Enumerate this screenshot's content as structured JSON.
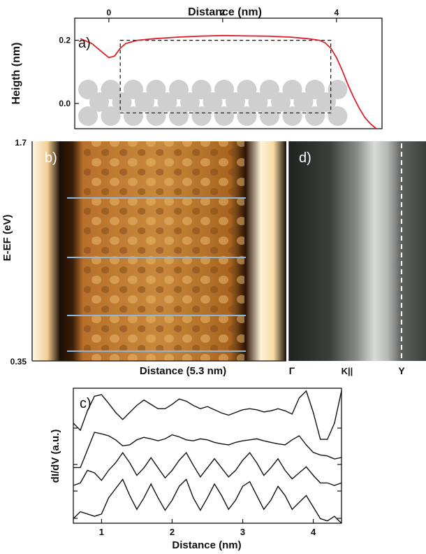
{
  "colors": {
    "profile": "#e0202a",
    "atoms": "#cfcfcf",
    "cut_lines": "#8fb6d6",
    "curves": "#111111",
    "map_dark": "#1a0e05",
    "map_mid": "#b8702a",
    "map_light": "#fff6e6",
    "arpes_dark": "#1e2320",
    "arpes_light": "#f2f2f2"
  },
  "chart_data": [
    {
      "panel": "a)",
      "type": "line",
      "xlabel": "Distance (nm)",
      "ylabel": "Heigth (nm)",
      "xticks": [
        "0",
        "2",
        "4"
      ],
      "yticks": [
        "0.2",
        "0.0"
      ],
      "xlim": [
        -0.6,
        4.8
      ],
      "ylim": [
        -0.08,
        0.27
      ],
      "grid": false,
      "series": [
        {
          "x": [
            -0.5,
            -0.3,
            -0.1,
            0.0,
            0.1,
            0.2,
            0.3,
            0.5,
            0.8,
            1.2,
            1.6,
            2.0,
            2.4,
            2.8,
            3.2,
            3.5,
            3.7,
            3.8,
            3.9,
            4.0,
            4.1,
            4.2,
            4.3,
            4.4,
            4.5,
            4.6,
            4.7
          ],
          "y": [
            0.205,
            0.19,
            0.16,
            0.145,
            0.15,
            0.175,
            0.19,
            0.2,
            0.205,
            0.21,
            0.213,
            0.215,
            0.214,
            0.213,
            0.21,
            0.205,
            0.2,
            0.192,
            0.175,
            0.145,
            0.105,
            0.06,
            0.02,
            -0.015,
            -0.045,
            -0.065,
            -0.08
          ]
        }
      ],
      "box": {
        "x": [
          0.2,
          3.9
        ],
        "y": [
          -0.03,
          0.2
        ]
      }
    },
    {
      "panel": "b)",
      "type": "heatmap",
      "xlabel": "Distance (5.3 nm)",
      "ylabel": "E-EF (eV)",
      "yticks": [
        "1.7",
        "0.35"
      ]
    },
    {
      "panel": "d)",
      "type": "heatmap",
      "xticks": [
        "Γ",
        "K||",
        "Y"
      ]
    },
    {
      "panel": "c)",
      "type": "line",
      "xlabel": "Distance (nm)",
      "ylabel": "dI/dV  (a.u.)",
      "xticks": [
        "1",
        "2",
        "3",
        "4"
      ],
      "xlim": [
        0.6,
        4.4
      ],
      "grid": false,
      "series": [
        {
          "x": [
            0.6,
            0.7,
            0.8,
            0.9,
            1.0,
            1.1,
            1.2,
            1.3,
            1.4,
            1.5,
            1.6,
            1.7,
            1.8,
            1.9,
            2.0,
            2.1,
            2.2,
            2.3,
            2.4,
            2.5,
            2.6,
            2.7,
            2.8,
            2.9,
            3.0,
            3.1,
            3.2,
            3.3,
            3.4,
            3.5,
            3.6,
            3.7,
            3.8,
            3.9,
            4.0,
            4.1,
            4.2,
            4.3,
            4.4
          ],
          "y": [
            0.35,
            0.22,
            0.58,
            0.85,
            0.88,
            0.72,
            0.55,
            0.42,
            0.55,
            0.68,
            0.78,
            0.7,
            0.62,
            0.62,
            0.7,
            0.8,
            0.76,
            0.68,
            0.62,
            0.66,
            0.6,
            0.54,
            0.5,
            0.55,
            0.6,
            0.62,
            0.6,
            0.56,
            0.58,
            0.62,
            0.58,
            0.52,
            0.82,
            0.95,
            0.55,
            0.05,
            0.05,
            0.35,
            0.95
          ]
        },
        {
          "x": [
            0.6,
            0.7,
            0.8,
            0.9,
            1.0,
            1.1,
            1.2,
            1.3,
            1.4,
            1.5,
            1.6,
            1.7,
            1.8,
            1.9,
            2.0,
            2.1,
            2.2,
            2.3,
            2.4,
            2.5,
            2.6,
            2.7,
            2.8,
            2.9,
            3.0,
            3.1,
            3.2,
            3.3,
            3.4,
            3.5,
            3.6,
            3.7,
            3.8,
            3.9,
            4.0,
            4.1,
            4.2,
            4.3,
            4.4
          ],
          "y": [
            0.05,
            0.05,
            0.4,
            0.75,
            0.72,
            0.68,
            0.6,
            0.48,
            0.5,
            0.6,
            0.65,
            0.62,
            0.58,
            0.62,
            0.7,
            0.66,
            0.6,
            0.58,
            0.62,
            0.6,
            0.55,
            0.52,
            0.5,
            0.55,
            0.58,
            0.6,
            0.62,
            0.58,
            0.55,
            0.52,
            0.5,
            0.6,
            0.68,
            0.5,
            0.35,
            0.3,
            0.28,
            0.22,
            0.25
          ]
        },
        {
          "x": [
            0.6,
            0.7,
            0.8,
            0.9,
            1.0,
            1.1,
            1.2,
            1.3,
            1.4,
            1.5,
            1.6,
            1.7,
            1.8,
            1.9,
            2.0,
            2.1,
            2.2,
            2.3,
            2.4,
            2.5,
            2.6,
            2.7,
            2.8,
            2.9,
            3.0,
            3.1,
            3.2,
            3.3,
            3.4,
            3.5,
            3.6,
            3.7,
            3.8,
            3.9,
            4.0,
            4.1,
            4.2,
            4.3,
            4.4
          ],
          "y": [
            0.25,
            0.3,
            0.55,
            0.5,
            0.35,
            0.55,
            0.7,
            0.9,
            0.7,
            0.45,
            0.6,
            0.8,
            0.6,
            0.4,
            0.55,
            0.75,
            0.9,
            0.65,
            0.42,
            0.6,
            0.78,
            0.6,
            0.42,
            0.55,
            0.75,
            0.9,
            0.7,
            0.45,
            0.6,
            0.78,
            0.55,
            0.38,
            0.5,
            0.62,
            0.45,
            0.3,
            0.3,
            0.25,
            0.3
          ]
        },
        {
          "x": [
            0.6,
            0.7,
            0.8,
            0.9,
            1.0,
            1.1,
            1.2,
            1.3,
            1.4,
            1.5,
            1.6,
            1.7,
            1.8,
            1.9,
            2.0,
            2.1,
            2.2,
            2.3,
            2.4,
            2.5,
            2.6,
            2.7,
            2.8,
            2.9,
            3.0,
            3.1,
            3.2,
            3.3,
            3.4,
            3.5,
            3.6,
            3.7,
            3.8,
            3.9,
            4.0,
            4.1,
            4.2,
            4.3,
            4.4
          ],
          "y": [
            0.1,
            0.25,
            0.2,
            0.15,
            0.2,
            0.55,
            0.75,
            0.95,
            0.6,
            0.3,
            0.55,
            0.85,
            0.55,
            0.28,
            0.5,
            0.8,
            0.95,
            0.55,
            0.28,
            0.55,
            0.85,
            0.6,
            0.3,
            0.5,
            0.8,
            0.9,
            0.6,
            0.3,
            0.5,
            0.8,
            0.6,
            0.3,
            0.45,
            0.6,
            0.35,
            0.1,
            0.05,
            0.15,
            0.0
          ]
        }
      ]
    }
  ]
}
